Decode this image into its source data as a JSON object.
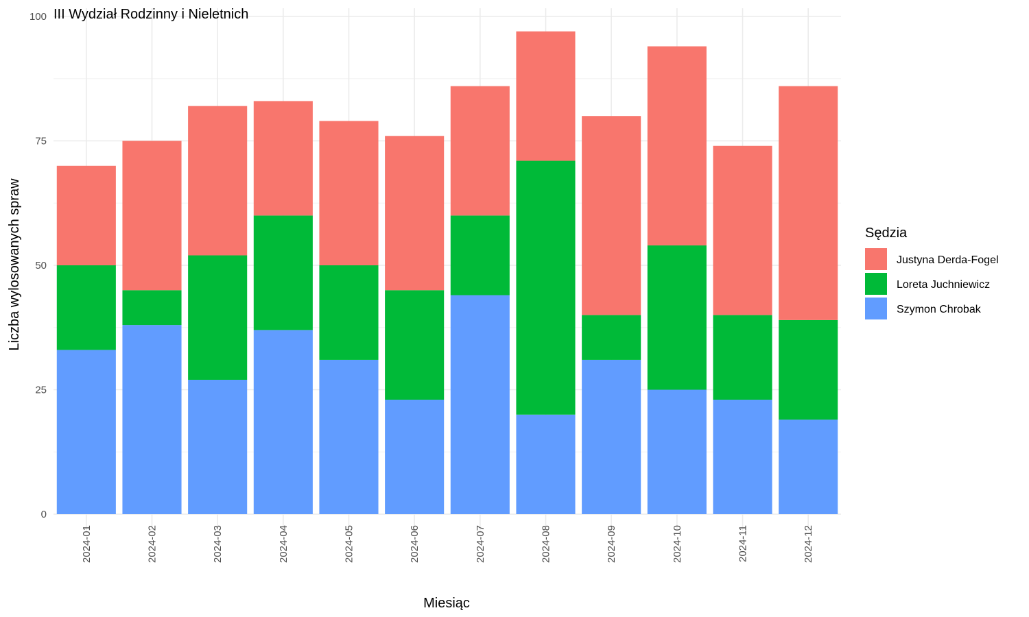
{
  "chart_data": {
    "type": "bar",
    "stacked": true,
    "title": "III Wydział Rodzinny i Nieletnich",
    "xlabel": "Miesiąc",
    "ylabel": "Liczba wylosowanych spraw",
    "ylim": [
      0,
      100
    ],
    "yticks": [
      0,
      25,
      50,
      75,
      100
    ],
    "grid": true,
    "legend": {
      "title": "Sędzia",
      "position": "right"
    },
    "categories": [
      "2024-01",
      "2024-02",
      "2024-03",
      "2024-04",
      "2024-05",
      "2024-06",
      "2024-07",
      "2024-08",
      "2024-09",
      "2024-10",
      "2024-11",
      "2024-12"
    ],
    "series": [
      {
        "name": "Szymon Chrobak",
        "color": "#619CFF",
        "values": [
          33,
          38,
          27,
          37,
          31,
          23,
          44,
          20,
          31,
          25,
          23,
          19
        ]
      },
      {
        "name": "Loreta Juchniewicz",
        "color": "#00BA38",
        "values": [
          17,
          7,
          25,
          23,
          19,
          22,
          16,
          51,
          9,
          29,
          17,
          20
        ]
      },
      {
        "name": "Justyna Derda-Fogel",
        "color": "#F8766D",
        "values": [
          20,
          30,
          30,
          23,
          29,
          31,
          26,
          26,
          40,
          40,
          34,
          47
        ]
      }
    ],
    "legend_order": [
      "Justyna Derda-Fogel",
      "Loreta Juchniewicz",
      "Szymon Chrobak"
    ]
  }
}
